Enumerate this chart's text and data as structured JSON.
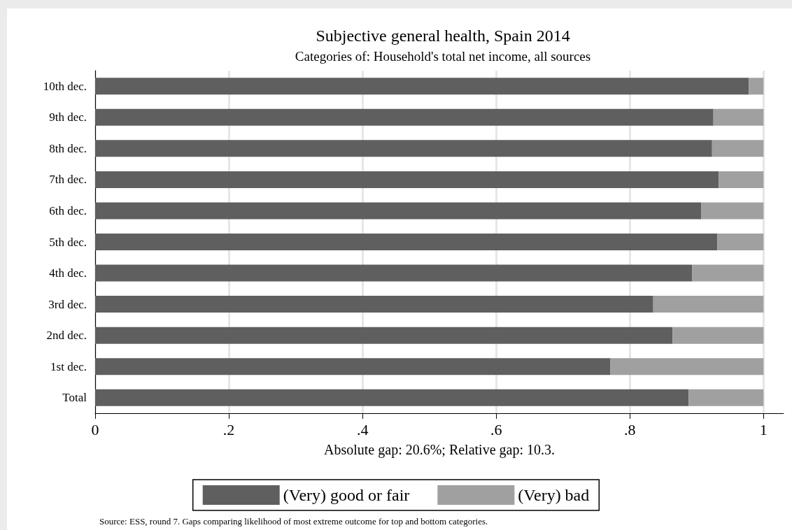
{
  "chart_data": {
    "type": "bar",
    "orientation": "horizontal",
    "stacked": true,
    "title": "Subjective general health, Spain 2014",
    "subtitle": "Categories of: Household's total net income, all sources",
    "xlabel": "Absolute gap: 20.6%; Relative gap: 10.3.",
    "categories": [
      "10th dec.",
      "9th dec.",
      "8th dec.",
      "7th dec.",
      "6th dec.",
      "5th dec.",
      "4th dec.",
      "3rd dec.",
      "2nd dec.",
      "1st dec.",
      "Total"
    ],
    "series": [
      {
        "name": "(Very) good or fair",
        "color": "#5f5f5f",
        "values": [
          0.978,
          0.925,
          0.923,
          0.933,
          0.907,
          0.931,
          0.893,
          0.835,
          0.864,
          0.771,
          0.888
        ]
      },
      {
        "name": "(Very) bad",
        "color": "#a0a0a0",
        "values": [
          0.022,
          0.075,
          0.077,
          0.067,
          0.093,
          0.069,
          0.107,
          0.165,
          0.136,
          0.229,
          0.112
        ]
      }
    ],
    "xlim": [
      0,
      1.03
    ],
    "xticks": [
      0,
      {
        "value": 0.2,
        "label": ".2"
      },
      {
        "value": 0.4,
        "label": ".4"
      },
      {
        "value": 0.6,
        "label": ".6"
      },
      {
        "value": 0.8,
        "label": ".8"
      },
      1
    ],
    "grid": "x",
    "legend": "bottom",
    "annotations": [
      "Source: ESS, round 7. Gaps comparing likelihood of most extreme outcome for top and bottom categories."
    ]
  }
}
